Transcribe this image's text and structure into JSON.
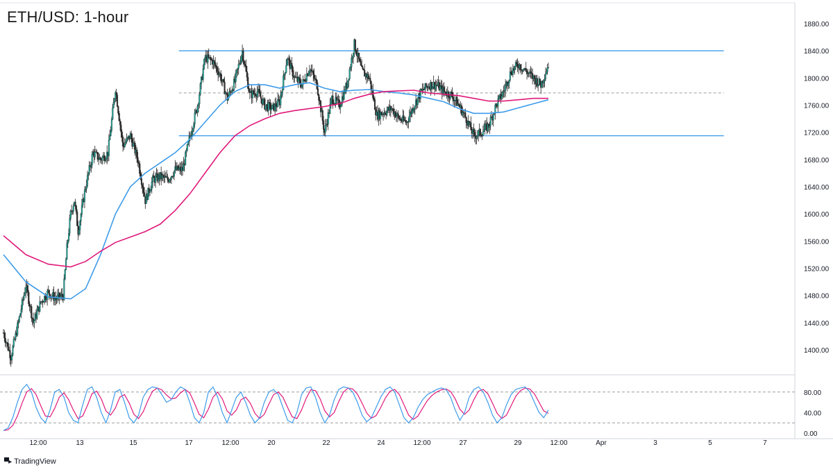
{
  "header": {
    "title": "ETH/USD: 1-hour"
  },
  "branding": {
    "logo_icon": "tradingview-logo-icon",
    "name": "TradingView"
  },
  "colors": {
    "candle_up": "#26a69a",
    "candle_down": "#2b2b2b",
    "ma_fast": "#3d9be9",
    "ma_slow": "#e0197a",
    "range_lines": "#3d9be9",
    "stoch_k": "#3d9be9",
    "stoch_d": "#e0197a",
    "grid_dashed": "#9e9e9e"
  },
  "chart_data": {
    "type": "line",
    "title": "ETH/USD: 1-hour",
    "x_tick_labels": [
      "12:00",
      "13",
      "15",
      "17",
      "12:00",
      "20",
      "22",
      "24",
      "12:00",
      "27",
      "29",
      "12:00",
      "Apr",
      "3",
      "5",
      "7"
    ],
    "y_tick_labels": [
      "1400.00",
      "1440.00",
      "1480.00",
      "1520.00",
      "1560.00",
      "1600.00",
      "1640.00",
      "1680.00",
      "1720.00",
      "1760.00",
      "1800.00",
      "1840.00",
      "1880.00"
    ],
    "ylim": [
      1365,
      1900
    ],
    "grid": false,
    "price_path": [
      [
        0,
        1425
      ],
      [
        2,
        1390
      ],
      [
        4,
        1440
      ],
      [
        6,
        1495
      ],
      [
        8,
        1440
      ],
      [
        10,
        1470
      ],
      [
        12,
        1485
      ],
      [
        14,
        1475
      ],
      [
        16,
        1480
      ],
      [
        17,
        1550
      ],
      [
        18,
        1600
      ],
      [
        19,
        1620
      ],
      [
        20,
        1575
      ],
      [
        22,
        1640
      ],
      [
        24,
        1690
      ],
      [
        26,
        1680
      ],
      [
        28,
        1690
      ],
      [
        30,
        1785
      ],
      [
        32,
        1700
      ],
      [
        34,
        1715
      ],
      [
        36,
        1680
      ],
      [
        38,
        1620
      ],
      [
        40,
        1650
      ],
      [
        42,
        1655
      ],
      [
        44,
        1650
      ],
      [
        46,
        1665
      ],
      [
        48,
        1665
      ],
      [
        50,
        1715
      ],
      [
        52,
        1760
      ],
      [
        54,
        1830
      ],
      [
        56,
        1825
      ],
      [
        58,
        1805
      ],
      [
        60,
        1770
      ],
      [
        62,
        1795
      ],
      [
        64,
        1840
      ],
      [
        66,
        1775
      ],
      [
        68,
        1780
      ],
      [
        70,
        1760
      ],
      [
        72,
        1755
      ],
      [
        74,
        1765
      ],
      [
        76,
        1830
      ],
      [
        78,
        1800
      ],
      [
        80,
        1790
      ],
      [
        82,
        1815
      ],
      [
        84,
        1790
      ],
      [
        86,
        1720
      ],
      [
        88,
        1770
      ],
      [
        90,
        1760
      ],
      [
        92,
        1790
      ],
      [
        94,
        1850
      ],
      [
        96,
        1810
      ],
      [
        98,
        1800
      ],
      [
        100,
        1745
      ],
      [
        102,
        1750
      ],
      [
        104,
        1755
      ],
      [
        106,
        1740
      ],
      [
        108,
        1735
      ],
      [
        110,
        1760
      ],
      [
        112,
        1780
      ],
      [
        114,
        1790
      ],
      [
        116,
        1790
      ],
      [
        118,
        1780
      ],
      [
        120,
        1775
      ],
      [
        122,
        1760
      ],
      [
        124,
        1740
      ],
      [
        126,
        1715
      ],
      [
        128,
        1720
      ],
      [
        130,
        1730
      ],
      [
        132,
        1760
      ],
      [
        134,
        1780
      ],
      [
        136,
        1810
      ],
      [
        138,
        1820
      ],
      [
        140,
        1810
      ],
      [
        142,
        1800
      ],
      [
        144,
        1790
      ],
      [
        146,
        1820
      ]
    ],
    "series": [
      {
        "name": "",
        "color": "#3d9be9",
        "points": [
          [
            0,
            1540
          ],
          [
            6,
            1500
          ],
          [
            12,
            1478
          ],
          [
            18,
            1475
          ],
          [
            22,
            1490
          ],
          [
            26,
            1540
          ],
          [
            30,
            1600
          ],
          [
            34,
            1640
          ],
          [
            38,
            1660
          ],
          [
            42,
            1675
          ],
          [
            46,
            1690
          ],
          [
            50,
            1710
          ],
          [
            54,
            1735
          ],
          [
            58,
            1760
          ],
          [
            62,
            1780
          ],
          [
            66,
            1790
          ],
          [
            70,
            1790
          ],
          [
            74,
            1785
          ],
          [
            78,
            1790
          ],
          [
            82,
            1793
          ],
          [
            86,
            1785
          ],
          [
            90,
            1780
          ],
          [
            94,
            1782
          ],
          [
            98,
            1783
          ],
          [
            102,
            1780
          ],
          [
            106,
            1778
          ],
          [
            110,
            1775
          ],
          [
            114,
            1770
          ],
          [
            118,
            1765
          ],
          [
            122,
            1755
          ],
          [
            126,
            1748
          ],
          [
            130,
            1748
          ],
          [
            134,
            1750
          ],
          [
            138,
            1756
          ],
          [
            142,
            1762
          ],
          [
            146,
            1768
          ]
        ]
      },
      {
        "name": "",
        "color": "#e0197a",
        "points": [
          [
            0,
            1568
          ],
          [
            6,
            1540
          ],
          [
            12,
            1526
          ],
          [
            18,
            1522
          ],
          [
            22,
            1530
          ],
          [
            26,
            1545
          ],
          [
            30,
            1558
          ],
          [
            34,
            1566
          ],
          [
            38,
            1574
          ],
          [
            42,
            1585
          ],
          [
            46,
            1605
          ],
          [
            50,
            1630
          ],
          [
            54,
            1660
          ],
          [
            58,
            1690
          ],
          [
            62,
            1715
          ],
          [
            66,
            1730
          ],
          [
            70,
            1740
          ],
          [
            74,
            1748
          ],
          [
            78,
            1752
          ],
          [
            82,
            1755
          ],
          [
            86,
            1758
          ],
          [
            90,
            1762
          ],
          [
            94,
            1770
          ],
          [
            98,
            1776
          ],
          [
            102,
            1780
          ],
          [
            106,
            1781
          ],
          [
            110,
            1782
          ],
          [
            114,
            1778
          ],
          [
            118,
            1776
          ],
          [
            122,
            1774
          ],
          [
            126,
            1770
          ],
          [
            130,
            1766
          ],
          [
            134,
            1766
          ],
          [
            138,
            1768
          ],
          [
            142,
            1770
          ],
          [
            146,
            1770
          ]
        ]
      }
    ],
    "horizontal_levels": [
      {
        "value": 1840,
        "style": "solid",
        "from": 47,
        "to": 193
      },
      {
        "value": 1778,
        "style": "dashed",
        "from": 47,
        "to": 193
      },
      {
        "value": 1715,
        "style": "solid",
        "from": 47,
        "to": 193
      }
    ],
    "oscillator": {
      "y_tick_labels": [
        "80.00",
        "40.00",
        "0.00"
      ],
      "ylim": [
        0,
        100
      ],
      "levels": [
        80,
        20
      ],
      "k_values": [
        5,
        10,
        30,
        60,
        85,
        95,
        80,
        50,
        30,
        20,
        45,
        80,
        85,
        70,
        40,
        25,
        20,
        55,
        85,
        90,
        70,
        40,
        20,
        45,
        80,
        85,
        60,
        30,
        20,
        35,
        70,
        85,
        90,
        88,
        75,
        60,
        65,
        80,
        90,
        85,
        60,
        30,
        20,
        40,
        80,
        90,
        70,
        40,
        20,
        45,
        70,
        80,
        60,
        35,
        20,
        30,
        60,
        80,
        85,
        75,
        50,
        25,
        20,
        40,
        75,
        88,
        90,
        70,
        40,
        20,
        35,
        65,
        85,
        90,
        88,
        80,
        60,
        35,
        22,
        30,
        50,
        70,
        85,
        90,
        80,
        55,
        30,
        20,
        30,
        50,
        65,
        75,
        80,
        85,
        88,
        85,
        70,
        45,
        25,
        40,
        70,
        85,
        90,
        80,
        60,
        35,
        20,
        30,
        55,
        75,
        85,
        88,
        90,
        80,
        60,
        40,
        30,
        45
      ]
    }
  }
}
